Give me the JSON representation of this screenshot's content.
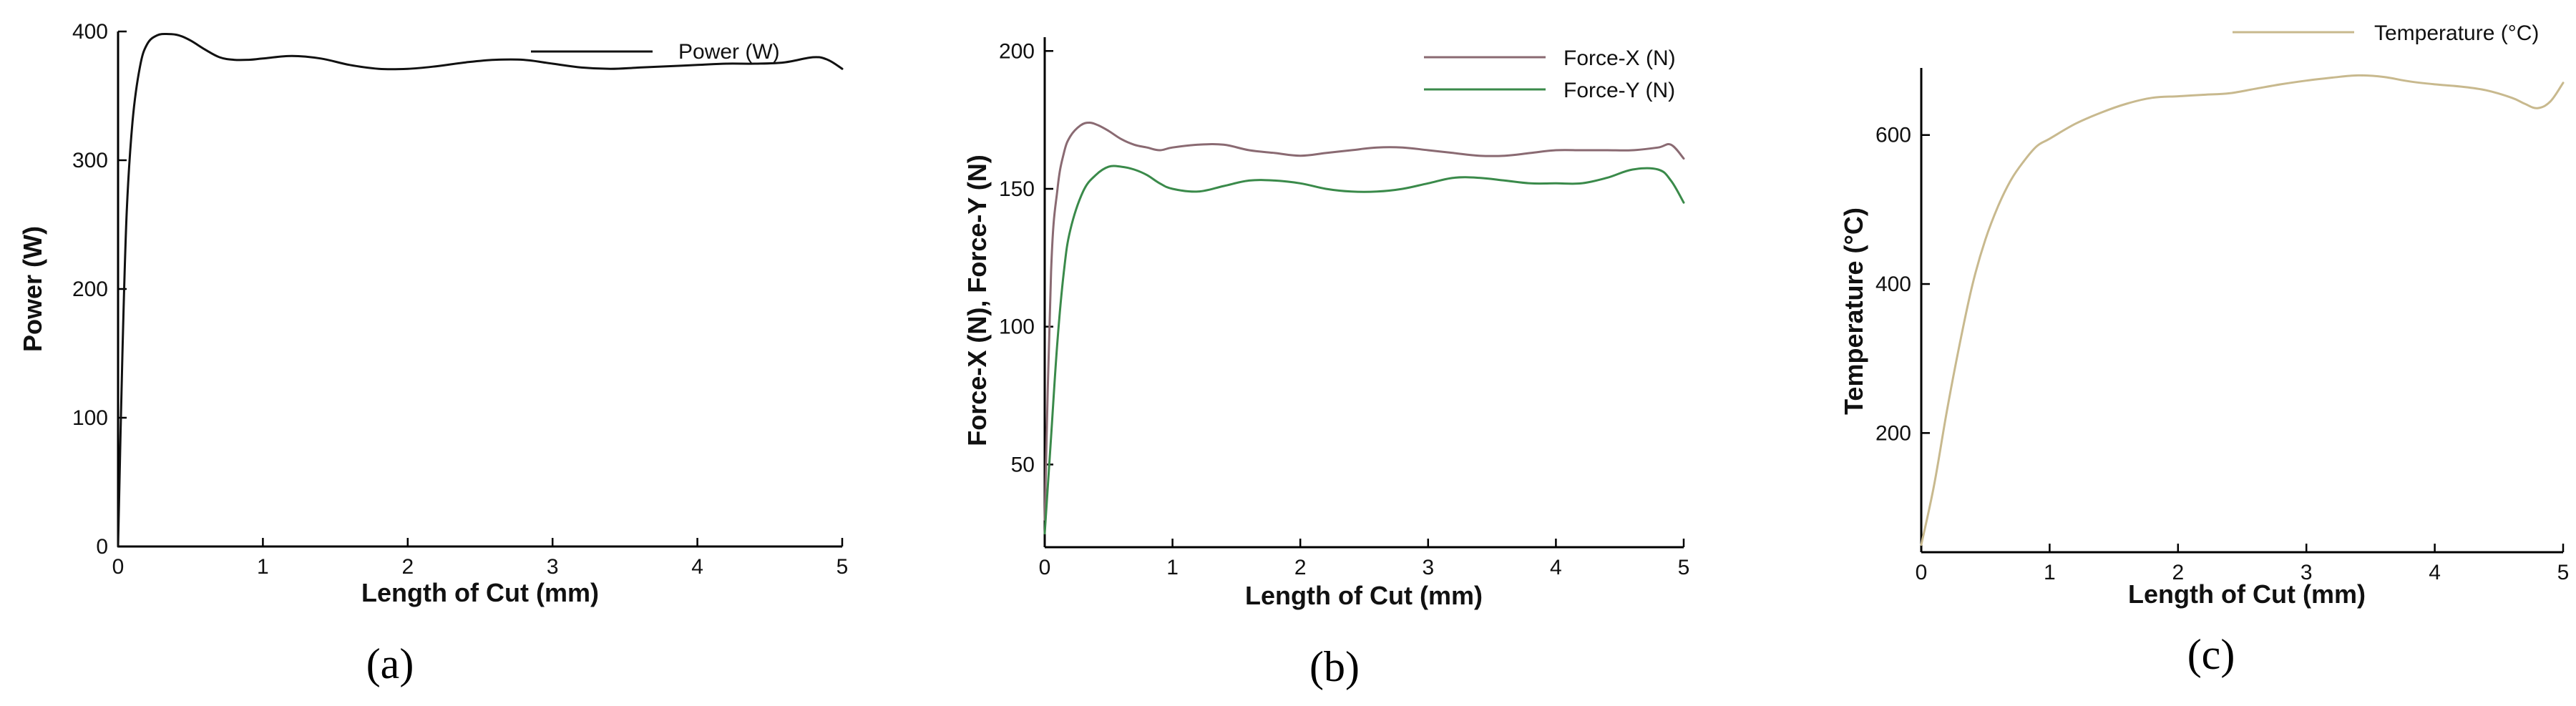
{
  "chart_data": [
    {
      "type": "line",
      "xlabel": "Length of Cut (mm)",
      "ylabel": "Power (W)",
      "xlim": [
        0,
        5
      ],
      "ylim": [
        0,
        400
      ],
      "xticks": [
        0,
        1,
        2,
        3,
        4,
        5
      ],
      "yticks": [
        0,
        100,
        200,
        300,
        400
      ],
      "legend_position": "top-right",
      "caption": "(a)",
      "series": [
        {
          "name": "Power (W)",
          "color": "#111111",
          "x": [
            0,
            0.03,
            0.06,
            0.1,
            0.15,
            0.2,
            0.27,
            0.35,
            0.42,
            0.5,
            0.6,
            0.7,
            0.8,
            0.9,
            1.0,
            1.2,
            1.4,
            1.6,
            1.8,
            2.0,
            2.2,
            2.4,
            2.6,
            2.8,
            3.0,
            3.2,
            3.4,
            3.6,
            3.8,
            4.0,
            4.2,
            4.4,
            4.6,
            4.8,
            4.9,
            5.0
          ],
          "y": [
            0,
            150,
            260,
            330,
            372,
            390,
            397,
            398,
            397,
            393,
            386,
            380,
            378,
            378,
            379,
            381,
            379,
            374,
            371,
            371,
            373,
            376,
            378,
            378,
            375,
            372,
            371,
            372,
            373,
            374,
            375,
            375,
            376,
            380,
            378,
            371
          ]
        }
      ]
    },
    {
      "type": "line",
      "xlabel": "Length of Cut (mm)",
      "ylabel": "Force-X (N), Force-Y (N)",
      "xlim": [
        0,
        5
      ],
      "ylim": [
        20,
        205
      ],
      "xticks": [
        0,
        1,
        2,
        3,
        4,
        5
      ],
      "yticks": [
        50,
        100,
        150,
        200
      ],
      "legend_position": "top-right",
      "caption": "(b)",
      "series": [
        {
          "name": "Force-X (N)",
          "color": "#8a6a72",
          "x": [
            0,
            0.05,
            0.1,
            0.15,
            0.2,
            0.28,
            0.35,
            0.42,
            0.5,
            0.6,
            0.7,
            0.8,
            0.9,
            1.0,
            1.2,
            1.4,
            1.6,
            1.8,
            2.0,
            2.2,
            2.4,
            2.6,
            2.8,
            3.0,
            3.2,
            3.4,
            3.6,
            3.8,
            4.0,
            4.2,
            4.4,
            4.6,
            4.8,
            4.9,
            5.0
          ],
          "y": [
            30,
            120,
            150,
            163,
            169,
            173,
            174,
            173,
            171,
            168,
            166,
            165,
            164,
            165,
            166,
            166,
            164,
            163,
            162,
            163,
            164,
            165,
            165,
            164,
            163,
            162,
            162,
            163,
            164,
            164,
            164,
            164,
            165,
            166,
            161
          ]
        },
        {
          "name": "Force-Y (N)",
          "color": "#3a8a4a",
          "x": [
            0,
            0.05,
            0.1,
            0.15,
            0.2,
            0.3,
            0.4,
            0.5,
            0.6,
            0.7,
            0.8,
            0.9,
            1.0,
            1.2,
            1.4,
            1.6,
            1.8,
            2.0,
            2.2,
            2.4,
            2.6,
            2.8,
            3.0,
            3.2,
            3.4,
            3.6,
            3.8,
            4.0,
            4.2,
            4.4,
            4.6,
            4.8,
            4.9,
            5.0
          ],
          "y": [
            25,
            60,
            95,
            120,
            135,
            149,
            155,
            158,
            158,
            157,
            155,
            152,
            150,
            149,
            151,
            153,
            153,
            152,
            150,
            149,
            149,
            150,
            152,
            154,
            154,
            153,
            152,
            152,
            152,
            154,
            157,
            157,
            153,
            145
          ]
        }
      ]
    },
    {
      "type": "line",
      "xlabel": "Length of Cut (mm)",
      "ylabel": "Temperature (°C)",
      "xlim": [
        0,
        5
      ],
      "ylim": [
        40,
        690
      ],
      "xticks": [
        0,
        1,
        2,
        3,
        4,
        5
      ],
      "yticks": [
        200,
        400,
        600
      ],
      "legend_position": "top-right",
      "caption": "(c)",
      "series": [
        {
          "name": "Temperature (°C)",
          "color": "#c8b98e",
          "x": [
            0,
            0.1,
            0.2,
            0.3,
            0.4,
            0.5,
            0.6,
            0.7,
            0.8,
            0.9,
            1.0,
            1.2,
            1.4,
            1.6,
            1.8,
            2.0,
            2.2,
            2.4,
            2.6,
            2.8,
            3.0,
            3.2,
            3.4,
            3.6,
            3.8,
            4.0,
            4.2,
            4.4,
            4.6,
            4.7,
            4.8,
            4.9,
            5.0
          ],
          "y": [
            50,
            130,
            230,
            320,
            400,
            460,
            505,
            540,
            565,
            585,
            595,
            615,
            630,
            642,
            650,
            652,
            654,
            656,
            662,
            668,
            673,
            677,
            680,
            678,
            672,
            668,
            665,
            660,
            650,
            642,
            636,
            645,
            670
          ]
        }
      ]
    }
  ]
}
